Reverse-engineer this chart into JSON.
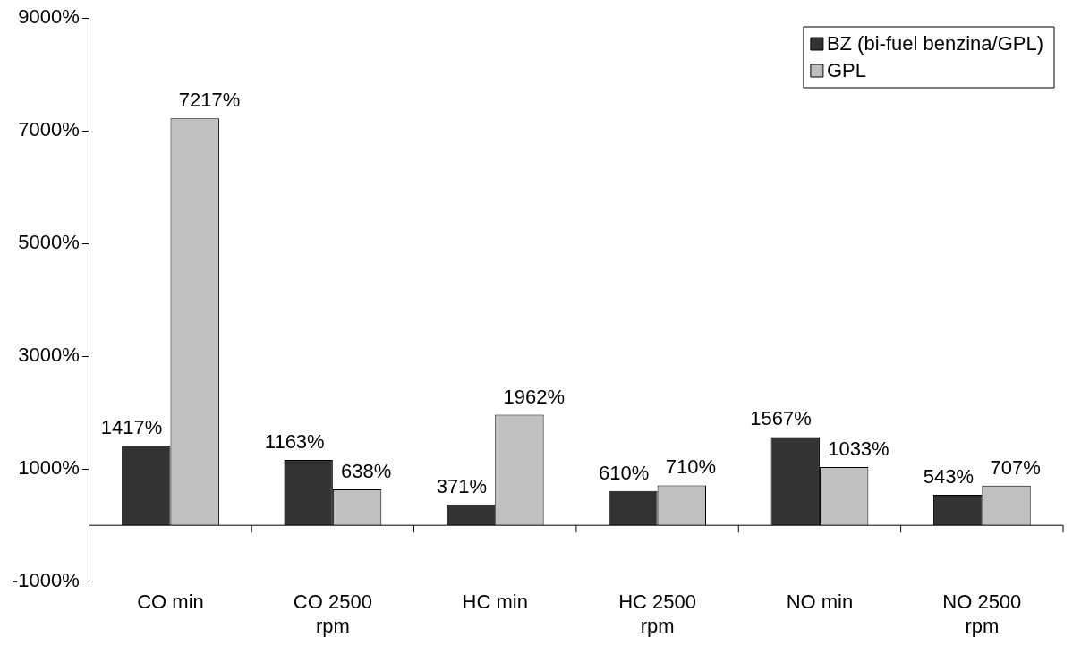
{
  "chart_data": {
    "type": "bar",
    "categories": [
      "CO min",
      "CO 2500 rpm",
      "HC min",
      "HC 2500 rpm",
      "NO min",
      "NO 2500 rpm"
    ],
    "series": [
      {
        "name": "BZ (bi-fuel benzina/GPL)",
        "color": "#333333",
        "values": [
          1417,
          1163,
          371,
          610,
          1567,
          543
        ],
        "value_labels": [
          "1417%",
          "1163%",
          "371%",
          "610%",
          "1567%",
          "543%"
        ]
      },
      {
        "name": "GPL",
        "color": "#c0c0c0",
        "values": [
          7217,
          638,
          1962,
          710,
          1033,
          707
        ],
        "value_labels": [
          "7217%",
          "638%",
          "1962%",
          "710%",
          "1033%",
          "707%"
        ]
      }
    ],
    "ylim": [
      -1000,
      9000
    ],
    "yticks": [
      {
        "value": -1000,
        "label": "-1000%"
      },
      {
        "value": 1000,
        "label": "1000%"
      },
      {
        "value": 3000,
        "label": "3000%"
      },
      {
        "value": 5000,
        "label": "5000%"
      },
      {
        "value": 7000,
        "label": "7000%"
      },
      {
        "value": 9000,
        "label": "9000%"
      }
    ],
    "legend": "top right",
    "grid": false
  }
}
